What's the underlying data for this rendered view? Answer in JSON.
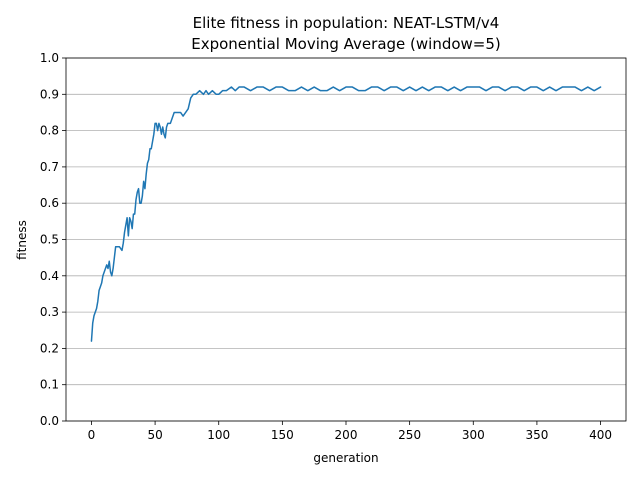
{
  "chart_data": {
    "type": "line",
    "title_line1": "Elite fitness in population: NEAT-LSTM/v4",
    "title_line2": "Exponential Moving Average (window=5)",
    "xlabel": "generation",
    "ylabel": "fitness",
    "xlim": [
      -20,
      420
    ],
    "ylim": [
      0.0,
      1.0
    ],
    "xticks": [
      0,
      50,
      100,
      150,
      200,
      250,
      300,
      350,
      400
    ],
    "yticks": [
      0.0,
      0.1,
      0.2,
      0.3,
      0.4,
      0.5,
      0.6,
      0.7,
      0.8,
      0.9,
      1.0
    ],
    "xtick_labels": [
      "0",
      "50",
      "100",
      "150",
      "200",
      "250",
      "300",
      "350",
      "400"
    ],
    "ytick_labels": [
      "0.0",
      "0.1",
      "0.2",
      "0.3",
      "0.4",
      "0.5",
      "0.6",
      "0.7",
      "0.8",
      "0.9",
      "1.0"
    ],
    "grid": "y-major",
    "series": [
      {
        "color": "#1f77b4",
        "x": [
          0,
          1,
          2,
          3,
          4,
          5,
          6,
          7,
          8,
          9,
          10,
          11,
          12,
          13,
          14,
          15,
          16,
          17,
          18,
          19,
          20,
          22,
          24,
          25,
          26,
          28,
          29,
          30,
          31,
          32,
          33,
          34,
          35,
          36,
          37,
          38,
          39,
          40,
          41,
          42,
          43,
          44,
          45,
          46,
          47,
          48,
          49,
          50,
          51,
          52,
          53,
          54,
          55,
          56,
          57,
          58,
          59,
          60,
          61,
          62,
          63,
          65,
          67,
          70,
          72,
          74,
          76,
          78,
          80,
          82,
          85,
          88,
          90,
          92,
          95,
          98,
          100,
          103,
          106,
          110,
          113,
          116,
          120,
          125,
          130,
          135,
          140,
          145,
          150,
          155,
          160,
          165,
          170,
          175,
          180,
          185,
          190,
          195,
          200,
          205,
          210,
          215,
          220,
          225,
          230,
          235,
          240,
          245,
          250,
          255,
          260,
          265,
          270,
          275,
          280,
          285,
          290,
          295,
          300,
          305,
          310,
          315,
          320,
          325,
          330,
          335,
          340,
          345,
          350,
          355,
          360,
          365,
          370,
          375,
          380,
          385,
          390,
          395,
          400
        ],
        "y": [
          0.22,
          0.27,
          0.29,
          0.3,
          0.31,
          0.33,
          0.36,
          0.37,
          0.38,
          0.4,
          0.41,
          0.42,
          0.43,
          0.42,
          0.44,
          0.41,
          0.4,
          0.42,
          0.45,
          0.48,
          0.48,
          0.48,
          0.47,
          0.49,
          0.52,
          0.56,
          0.51,
          0.56,
          0.55,
          0.53,
          0.57,
          0.57,
          0.61,
          0.63,
          0.64,
          0.6,
          0.6,
          0.62,
          0.66,
          0.64,
          0.68,
          0.71,
          0.72,
          0.75,
          0.75,
          0.77,
          0.79,
          0.82,
          0.82,
          0.8,
          0.82,
          0.81,
          0.79,
          0.81,
          0.79,
          0.78,
          0.81,
          0.82,
          0.82,
          0.82,
          0.83,
          0.85,
          0.85,
          0.85,
          0.84,
          0.85,
          0.86,
          0.89,
          0.9,
          0.9,
          0.91,
          0.9,
          0.91,
          0.9,
          0.91,
          0.9,
          0.9,
          0.91,
          0.91,
          0.92,
          0.91,
          0.92,
          0.92,
          0.91,
          0.92,
          0.92,
          0.91,
          0.92,
          0.92,
          0.91,
          0.91,
          0.92,
          0.91,
          0.92,
          0.91,
          0.91,
          0.92,
          0.91,
          0.92,
          0.92,
          0.91,
          0.91,
          0.92,
          0.92,
          0.91,
          0.92,
          0.92,
          0.91,
          0.92,
          0.91,
          0.92,
          0.91,
          0.92,
          0.92,
          0.91,
          0.92,
          0.91,
          0.92,
          0.92,
          0.92,
          0.91,
          0.92,
          0.92,
          0.91,
          0.92,
          0.92,
          0.91,
          0.92,
          0.92,
          0.91,
          0.92,
          0.91,
          0.92,
          0.92,
          0.92,
          0.91,
          0.92,
          0.91,
          0.92
        ]
      }
    ]
  }
}
